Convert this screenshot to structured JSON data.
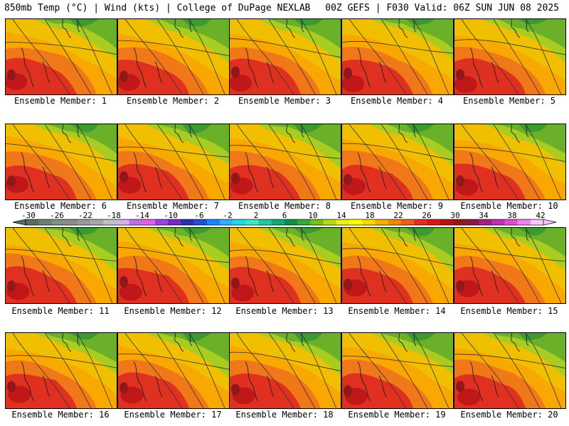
{
  "header": {
    "left": "850mb Temp (°C) | Wind (kts) | College of DuPage NEXLAB",
    "right": "00Z GEFS | F030 Valid: 06Z SUN JUN 08 2025"
  },
  "panels": [
    {
      "label": "Ensemble Member: 1",
      "member": 1
    },
    {
      "label": "Ensemble Member: 2",
      "member": 2
    },
    {
      "label": "Ensemble Member: 3",
      "member": 3
    },
    {
      "label": "Ensemble Member: 4",
      "member": 4
    },
    {
      "label": "Ensemble Member: 5",
      "member": 5
    },
    {
      "label": "Ensemble Member: 6",
      "member": 6
    },
    {
      "label": "Ensemble Member: 7",
      "member": 7
    },
    {
      "label": "Ensemble Member: 8",
      "member": 8
    },
    {
      "label": "Ensemble Member: 9",
      "member": 9
    },
    {
      "label": "Ensemble Member: 10",
      "member": 10
    },
    {
      "label": "Ensemble Member: 11",
      "member": 11
    },
    {
      "label": "Ensemble Member: 12",
      "member": 12
    },
    {
      "label": "Ensemble Member: 13",
      "member": 13
    },
    {
      "label": "Ensemble Member: 14",
      "member": 14
    },
    {
      "label": "Ensemble Member: 15",
      "member": 15
    },
    {
      "label": "Ensemble Member: 16",
      "member": 16
    },
    {
      "label": "Ensemble Member: 17",
      "member": 17
    },
    {
      "label": "Ensemble Member: 18",
      "member": 18
    },
    {
      "label": "Ensemble Member: 19",
      "member": 19
    },
    {
      "label": "Ensemble Member: 20",
      "member": 20
    }
  ],
  "colorbar": {
    "tick_labels": [
      "-30",
      "-26",
      "-22",
      "-18",
      "-14",
      "-10",
      "-6",
      "-2",
      "2",
      "6",
      "10",
      "14",
      "18",
      "22",
      "26",
      "30",
      "34",
      "38",
      "42"
    ],
    "colors": [
      "#5a6a5f",
      "#6e7e72",
      "#809084",
      "#8c8c8c",
      "#9a9a9a",
      "#a8a8a8",
      "#c0c0c8",
      "#d8b0e8",
      "#c070e0",
      "#e060e8",
      "#a040d8",
      "#7828c8",
      "#3030a0",
      "#2050d0",
      "#2080ff",
      "#30b0ff",
      "#20d8e8",
      "#40e8c8",
      "#20c8a0",
      "#18a878",
      "#109048",
      "#38a838",
      "#78c020",
      "#b8d818",
      "#ecec20",
      "#ffff00",
      "#f8d800",
      "#f0b000",
      "#f08800",
      "#e86020",
      "#e03020",
      "#d81818",
      "#b81010",
      "#901818",
      "#881848",
      "#a02080",
      "#c030b0",
      "#d850d0",
      "#f080f0",
      "#f8c8f8"
    ]
  }
}
